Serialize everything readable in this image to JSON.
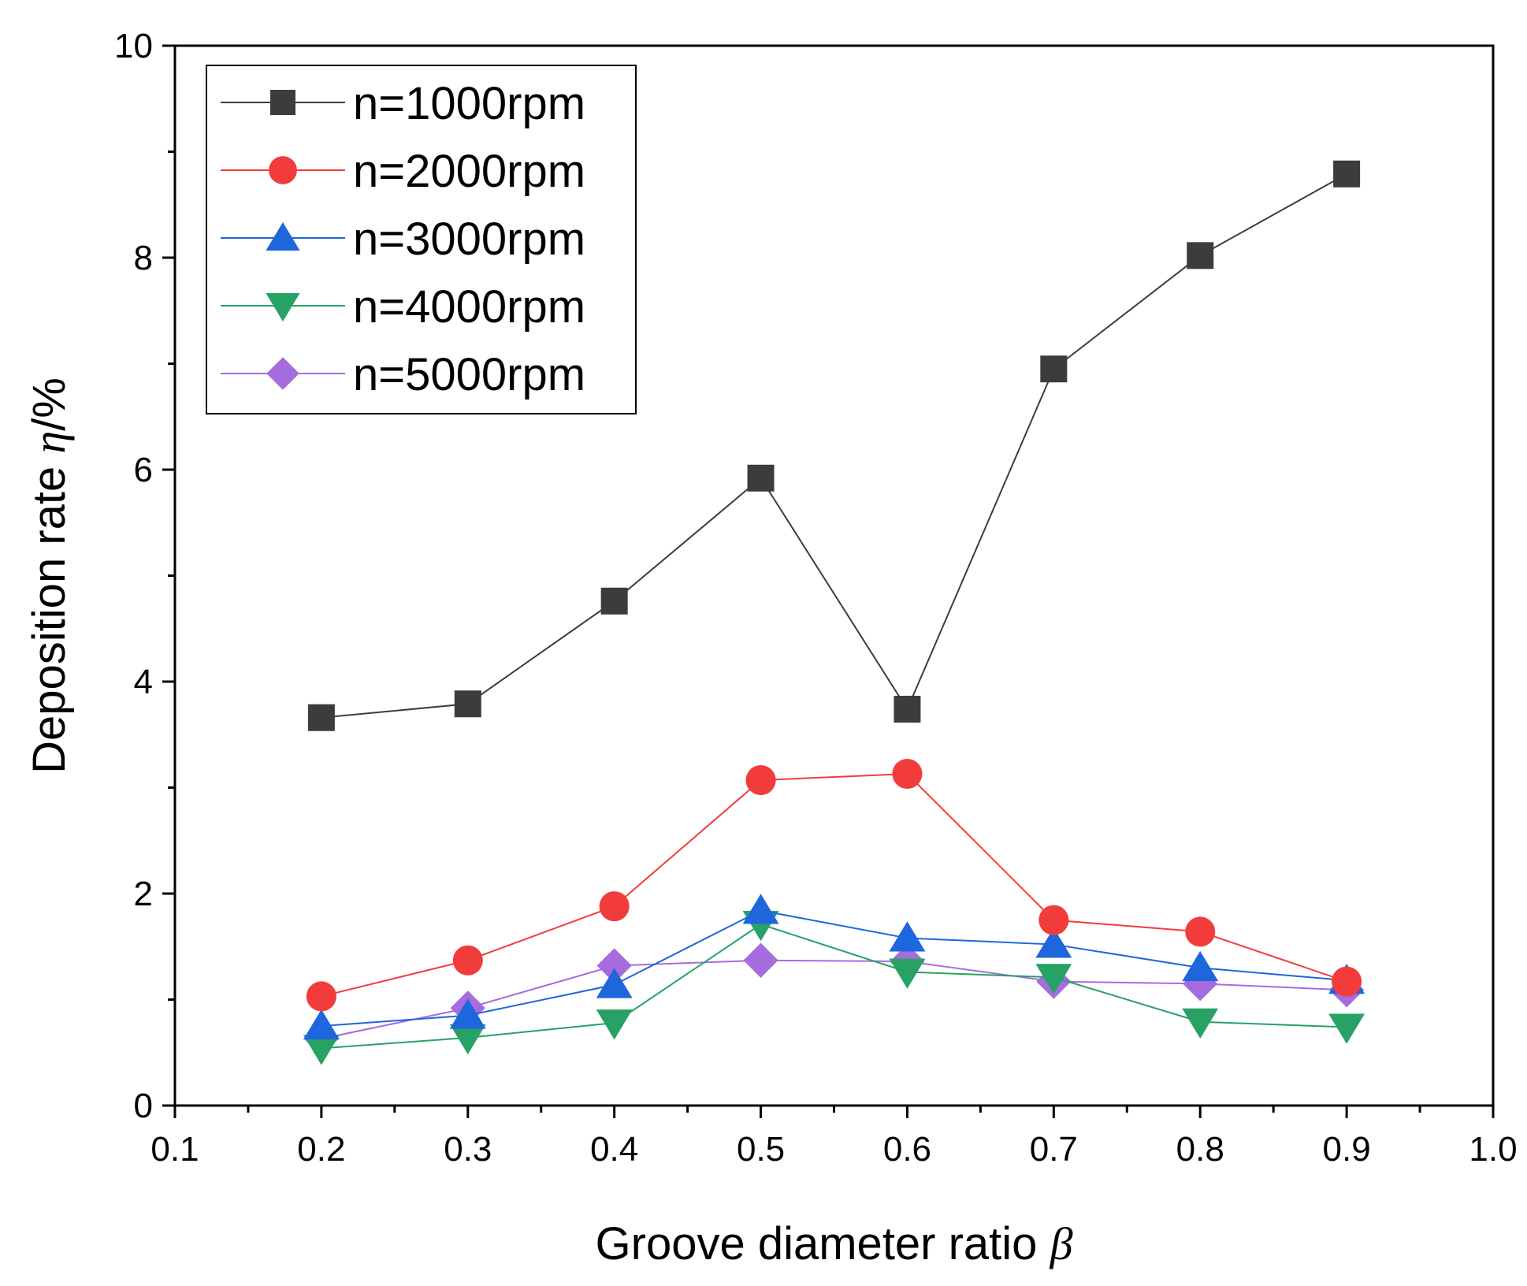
{
  "chart_data": {
    "type": "line",
    "title": "",
    "xlabel": "Groove diameter ratio",
    "xlabel_symbol": "β",
    "ylabel": "Deposition rate",
    "ylabel_symbol": "η",
    "ylabel_unit": "/%",
    "xlim": [
      0.1,
      1.0
    ],
    "ylim": [
      0,
      10
    ],
    "x_ticks": [
      "0.1",
      "0.2",
      "0.3",
      "0.4",
      "0.5",
      "0.6",
      "0.7",
      "0.8",
      "0.9",
      "1.0"
    ],
    "y_ticks": [
      "0",
      "2",
      "4",
      "6",
      "8",
      "10"
    ],
    "x": [
      0.2,
      0.3,
      0.4,
      0.5,
      0.6,
      0.7,
      0.8,
      0.9
    ],
    "legend_position": "top-left",
    "series": [
      {
        "name": "n=1000rpm",
        "color": "#3c3c3c",
        "marker": "square",
        "values": [
          3.66,
          3.79,
          4.76,
          5.92,
          3.74,
          6.95,
          8.02,
          8.79
        ]
      },
      {
        "name": "n=2000rpm",
        "color": "#f23c3c",
        "marker": "circle",
        "values": [
          1.03,
          1.37,
          1.88,
          3.07,
          3.13,
          1.75,
          1.64,
          1.17
        ]
      },
      {
        "name": "n=3000rpm",
        "color": "#1e66dc",
        "marker": "triangle-up",
        "values": [
          0.75,
          0.85,
          1.14,
          1.84,
          1.58,
          1.52,
          1.3,
          1.18
        ]
      },
      {
        "name": "n=4000rpm",
        "color": "#27a264",
        "marker": "triangle-down",
        "values": [
          0.54,
          0.64,
          0.78,
          1.71,
          1.26,
          1.21,
          0.79,
          0.74
        ]
      },
      {
        "name": "n=5000rpm",
        "color": "#a66cde",
        "marker": "diamond",
        "values": [
          0.63,
          0.92,
          1.32,
          1.37,
          1.36,
          1.17,
          1.15,
          1.09
        ]
      }
    ]
  }
}
